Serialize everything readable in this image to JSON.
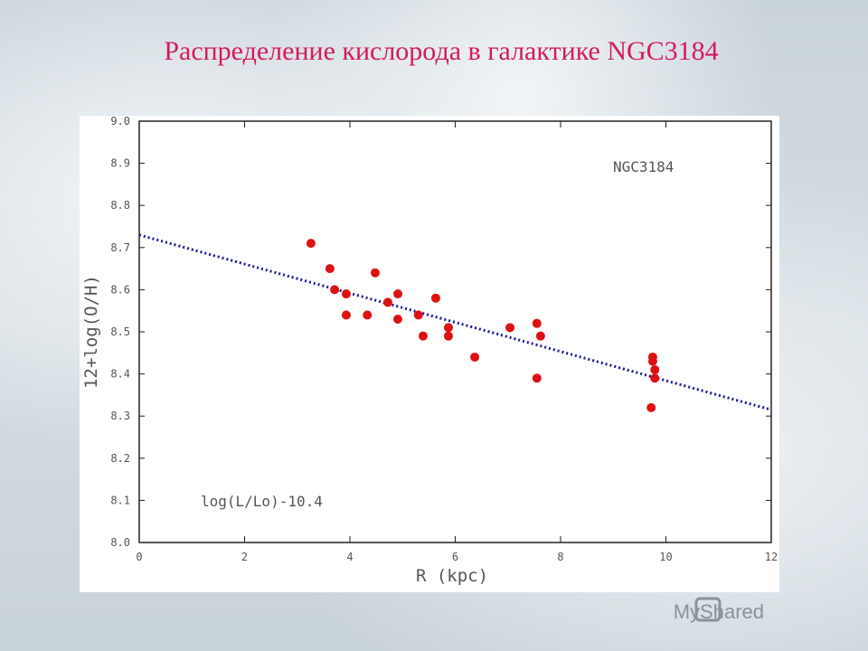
{
  "chart_data": {
    "type": "scatter",
    "title": "Распределение кислорода в галактике NGC3184",
    "xlabel": "R (kpc)",
    "ylabel": "12+log(O/H)",
    "annotations": [
      "NGC3184",
      "log(L/Lo)-10.4"
    ],
    "xlim": [
      0,
      12
    ],
    "ylim": [
      8,
      9
    ],
    "xticks": [
      0,
      2,
      4,
      6,
      8,
      10,
      12
    ],
    "yticks": [
      {
        "value": 8,
        "label": "8.0"
      },
      8.1,
      8.2,
      8.3,
      8.4,
      8.5,
      8.6,
      8.7,
      8.8,
      8.9,
      {
        "value": 9,
        "label": "9.0"
      }
    ],
    "points": {
      "color": "#dd1111",
      "x": [
        3.26,
        3.62,
        3.71,
        3.93,
        3.93,
        4.33,
        4.48,
        4.72,
        4.91,
        4.91,
        5.3,
        5.39,
        5.63,
        5.87,
        5.87,
        6.37,
        7.04,
        7.55,
        7.62,
        7.55,
        9.75,
        9.75,
        9.79,
        9.79,
        9.72
      ],
      "values": [
        8.71,
        8.65,
        8.6,
        8.59,
        8.54,
        8.54,
        8.64,
        8.57,
        8.59,
        8.53,
        8.54,
        8.49,
        8.58,
        8.51,
        8.49,
        8.44,
        8.51,
        8.52,
        8.49,
        8.39,
        8.44,
        8.43,
        8.41,
        8.39,
        8.32
      ]
    },
    "trend": {
      "color": "#1a1a9a",
      "x": [
        0,
        12
      ],
      "values": [
        8.73,
        8.315
      ]
    }
  },
  "footer": {
    "watermark": "MyShared"
  }
}
